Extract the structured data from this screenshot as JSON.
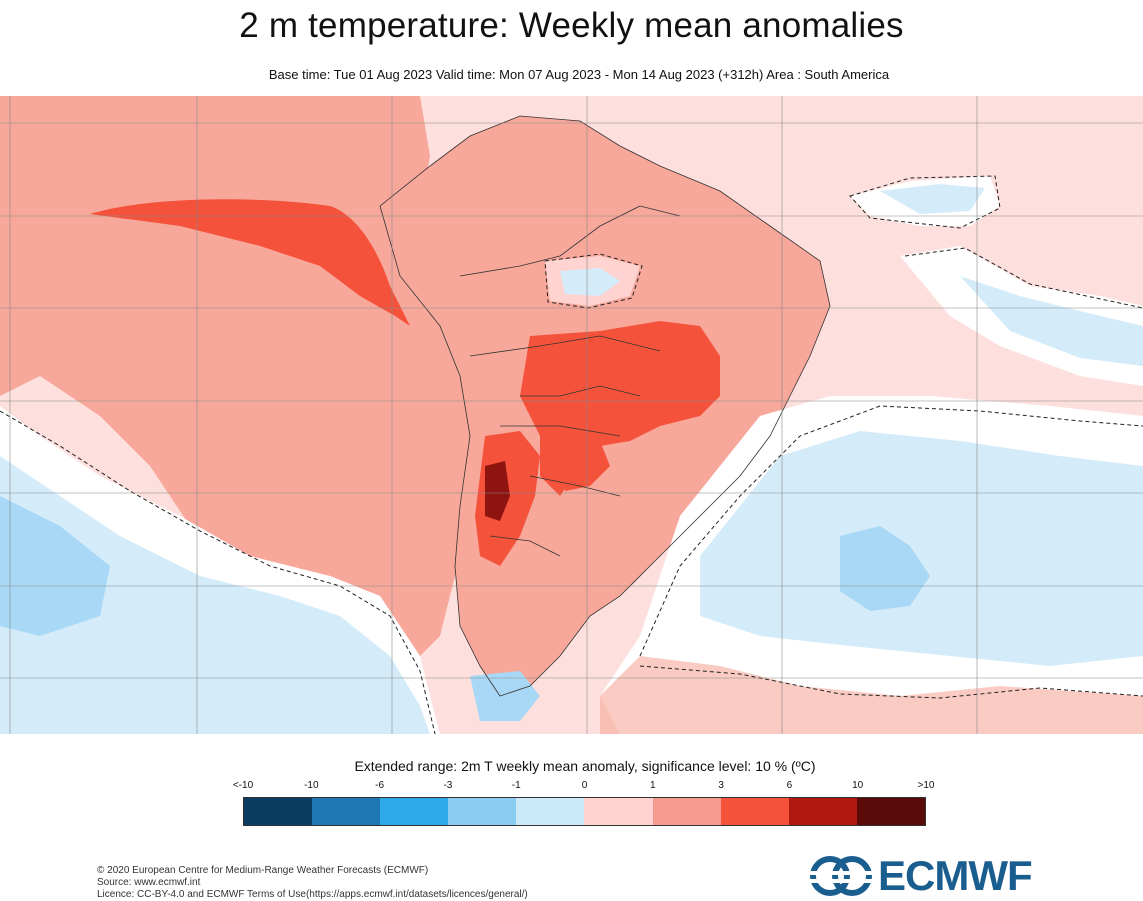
{
  "header": {
    "title": "2 m temperature: Weekly mean anomalies",
    "subtitle": "Base time: Tue 01 Aug 2023 Valid time: Mon 07 Aug 2023 - Mon 14 Aug 2023 (+312h) Area : South America"
  },
  "legend": {
    "title": "Extended range: 2m T weekly mean anomaly, significance level: 10 % (ºC)",
    "ticks": [
      "<-10",
      "-10",
      "-6",
      "-3",
      "-1",
      "0",
      "1",
      "3",
      "6",
      "10",
      ">10"
    ],
    "colors": [
      "#0b3d63",
      "#1f78b4",
      "#2eaae8",
      "#8ccbf2",
      "#cce9fa",
      "#ffd3d0",
      "#f59a8f",
      "#f4523a",
      "#b01910",
      "#5a0a08"
    ]
  },
  "map": {
    "region": "South America",
    "palette": {
      "ocean_light_pink": "#fde0dd",
      "pink": "#f7a89b",
      "red": "#f4523a",
      "dark_red": "#8e1410",
      "light_blue": "#d4ecfa",
      "blue": "#a8d8f5",
      "white": "#ffffff"
    }
  },
  "footer": {
    "copyright": "© 2020 European Centre for Medium-Range Weather Forecasts (ECMWF)",
    "source": "Source: www.ecmwf.int",
    "licence": "Licence: CC-BY-4.0 and ECMWF Terms of Use(https://apps.ecmwf.int/datasets/licences/general/)"
  },
  "logo": {
    "text": "ECMWF",
    "color": "#1a5d8f"
  }
}
